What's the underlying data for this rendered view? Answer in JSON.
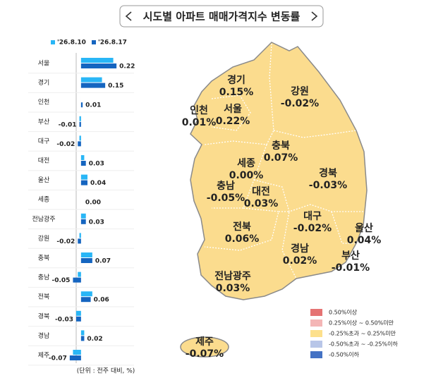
{
  "title": "시도별 아파트 매매가격지수 변동률",
  "chart_data": {
    "type": "barh",
    "categories": [
      "서울",
      "경기",
      "인천",
      "부산",
      "대구",
      "대전",
      "울산",
      "세종",
      "전남광주",
      "강원",
      "충북",
      "충남",
      "전북",
      "경북",
      "경남",
      "제주"
    ],
    "series": [
      {
        "name": "'26.8.10",
        "color": "#29b6f6",
        "values": [
          0.2,
          0.13,
          0.0,
          -0.01,
          -0.01,
          0.02,
          0.04,
          0.0,
          0.03,
          -0.01,
          0.07,
          -0.02,
          0.07,
          -0.03,
          0.02,
          -0.05
        ]
      },
      {
        "name": "'26.8.17",
        "color": "#1565c0",
        "values": [
          0.22,
          0.15,
          0.01,
          -0.01,
          -0.02,
          0.03,
          0.04,
          0.0,
          0.03,
          -0.02,
          0.07,
          -0.05,
          0.06,
          -0.03,
          0.02,
          -0.07
        ],
        "value_labels": [
          "0.22",
          "0.15",
          "0.01",
          "-0.01",
          "-0.02",
          "0.03",
          "0.04",
          "0.00",
          "0.03",
          "-0.02",
          "0.07",
          "-0.05",
          "0.06",
          "-0.03",
          "0.02",
          "-0.07"
        ]
      }
    ],
    "xlim": [
      -0.1,
      0.25
    ],
    "note": "(단위 : 전주 대비, %)"
  },
  "map": {
    "regions": [
      {
        "name": "경기",
        "value": "0.15%"
      },
      {
        "name": "강원",
        "value": "-0.02%"
      },
      {
        "name": "인천",
        "value": "0.01%"
      },
      {
        "name": "서울",
        "value": "0.22%"
      },
      {
        "name": "충북",
        "value": "0.07%"
      },
      {
        "name": "세종",
        "value": "0.00%"
      },
      {
        "name": "경북",
        "value": "-0.03%"
      },
      {
        "name": "충남",
        "value": "-0.05%"
      },
      {
        "name": "대전",
        "value": "0.03%"
      },
      {
        "name": "대구",
        "value": "-0.02%"
      },
      {
        "name": "울산",
        "value": "0.04%"
      },
      {
        "name": "전북",
        "value": "0.06%"
      },
      {
        "name": "경남",
        "value": "0.02%"
      },
      {
        "name": "부산",
        "value": "-0.01%"
      },
      {
        "name": "전남광주",
        "value": "0.03%"
      },
      {
        "name": "제주",
        "value": "-0.07%"
      }
    ],
    "legend": [
      {
        "label": "0.50%이상",
        "color": "#e57373"
      },
      {
        "label": "0.25%이상 ~ 0.50%미만",
        "color": "#f4b6b6"
      },
      {
        "label": "-0.25%초과 ~ 0.25%미만",
        "color": "#fde08b"
      },
      {
        "label": "-0.50%초과 ~ -0.25%이하",
        "color": "#b8c6e8"
      },
      {
        "label": "-0.50%이하",
        "color": "#4472c4"
      }
    ]
  }
}
